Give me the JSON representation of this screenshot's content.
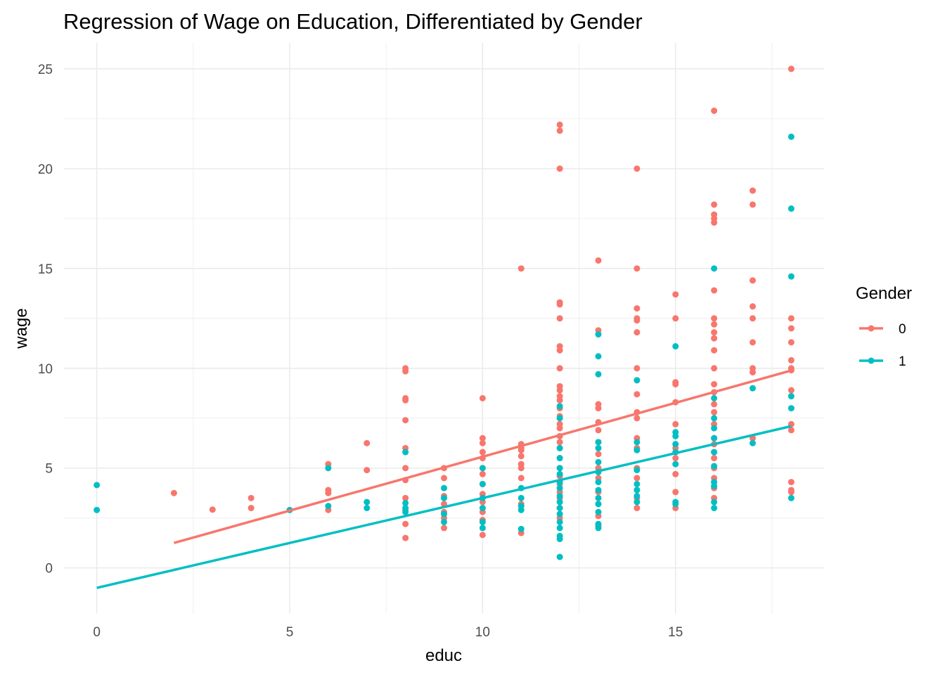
{
  "chart_data": {
    "type": "scatter",
    "title": "Regression of Wage on Education, Differentiated by Gender",
    "xlabel": "educ",
    "ylabel": "wage",
    "xlim": [
      -0.85,
      18.85
    ],
    "ylim": [
      -2.3,
      26.3
    ],
    "x_ticks": [
      0,
      5,
      10,
      15
    ],
    "x_tick_labels": [
      "0",
      "5",
      "10",
      "15"
    ],
    "y_ticks": [
      0,
      5,
      10,
      15,
      20,
      25
    ],
    "y_tick_labels": [
      "0",
      "5",
      "10",
      "15",
      "20",
      "25"
    ],
    "grid": true,
    "legend": {
      "title": "Gender",
      "position": "right"
    },
    "series": [
      {
        "name": "0",
        "color": "#F8766D",
        "fit_line": {
          "x_range": [
            2,
            18
          ],
          "intercept": 0.17,
          "slope": 0.54
        },
        "points_by_x": {
          "2": [
            3.75
          ],
          "3": [
            2.92
          ],
          "4": [
            3.5,
            3.0
          ],
          "6": [
            5.2,
            3.9,
            3.75,
            2.9
          ],
          "7": [
            6.25,
            4.9
          ],
          "8": [
            10.0,
            9.85,
            8.5,
            8.4,
            7.4,
            6.0,
            5.0,
            4.4,
            3.5,
            2.9,
            2.2,
            1.5
          ],
          "9": [
            5.0,
            4.5,
            3.6,
            3.2,
            2.8,
            2.5,
            2.0
          ],
          "10": [
            8.5,
            6.5,
            6.25,
            5.8,
            5.5,
            4.7,
            4.2,
            3.7,
            3.3,
            2.8,
            2.4,
            1.65
          ],
          "11": [
            15.0,
            6.2,
            6.0,
            5.9,
            5.6,
            5.2,
            5.0,
            4.5,
            3.2,
            1.75
          ],
          "12": [
            22.2,
            21.9,
            20.0,
            13.3,
            13.2,
            12.5,
            11.1,
            10.9,
            10.0,
            9.1,
            8.9,
            8.6,
            8.4,
            8.0,
            7.6,
            7.2,
            7.0,
            6.6,
            6.3,
            6.0,
            5.5,
            5.0,
            4.6,
            4.2,
            3.8,
            3.5,
            3.0,
            2.5
          ],
          "13": [
            15.4,
            11.9,
            8.2,
            8.0,
            7.3,
            6.9,
            6.3,
            5.7,
            5.0,
            4.5,
            3.8,
            3.2,
            2.6,
            2.1
          ],
          "14": [
            20.0,
            15.0,
            13.0,
            12.5,
            12.4,
            11.8,
            10.0,
            9.4,
            8.7,
            7.8,
            7.5,
            6.5,
            6.0,
            5.0,
            4.5,
            3.9,
            3.5,
            3.0
          ],
          "15": [
            13.7,
            12.5,
            9.3,
            9.2,
            8.3,
            7.2,
            6.0,
            5.5,
            4.7,
            3.8,
            3.0
          ],
          "16": [
            22.9,
            18.2,
            17.7,
            17.5,
            17.3,
            13.9,
            12.5,
            12.2,
            11.8,
            11.5,
            10.9,
            10.0,
            9.2,
            8.8,
            8.2,
            7.8,
            7.2,
            6.5,
            6.2,
            5.8,
            5.5,
            5.0,
            4.5,
            4.0,
            3.5
          ],
          "17": [
            18.9,
            18.2,
            14.4,
            13.1,
            12.5,
            11.3,
            10.0,
            9.8,
            6.5
          ],
          "18": [
            25.0,
            12.5,
            12.0,
            11.3,
            10.4,
            10.0,
            9.9,
            8.9,
            7.2,
            6.9,
            4.3,
            3.9,
            3.8
          ]
        }
      },
      {
        "name": "1",
        "color": "#00BFC4",
        "fit_line": {
          "x_range": [
            0,
            18
          ],
          "intercept": -1.0,
          "slope": 0.45
        },
        "points_by_x": {
          "0": [
            4.15,
            2.9
          ],
          "5": [
            2.9
          ],
          "6": [
            5.0,
            3.1
          ],
          "7": [
            3.3,
            3.0
          ],
          "8": [
            5.8,
            3.25,
            3.0,
            2.8
          ],
          "9": [
            4.0,
            3.5,
            2.7,
            2.3
          ],
          "10": [
            5.0,
            4.2,
            3.5,
            3.0,
            2.3,
            2.0
          ],
          "11": [
            4.0,
            3.5,
            3.1,
            2.9,
            1.95
          ],
          "12": [
            8.1,
            7.5,
            6.0,
            5.5,
            5.0,
            4.7,
            4.3,
            4.0,
            3.6,
            3.3,
            3.0,
            2.7,
            2.3,
            2.0,
            1.6,
            1.45,
            0.55
          ],
          "13": [
            11.7,
            10.6,
            9.7,
            6.3,
            6.0,
            5.3,
            4.8,
            4.3,
            3.9,
            3.5,
            3.2,
            2.8,
            2.2,
            2.0
          ],
          "14": [
            9.4,
            6.3,
            5.9,
            4.9,
            4.2,
            3.9,
            3.6,
            3.3
          ],
          "15": [
            11.1,
            6.8,
            6.6,
            6.2,
            5.8,
            5.2,
            3.3,
            3.2
          ],
          "16": [
            15.0,
            8.5,
            7.5,
            7.0,
            6.5,
            5.8,
            5.1,
            4.3,
            4.1,
            3.3,
            3.0
          ],
          "17": [
            9.0,
            6.25
          ],
          "18": [
            21.6,
            18.0,
            14.6,
            8.6,
            8.0,
            3.5
          ]
        }
      }
    ]
  }
}
